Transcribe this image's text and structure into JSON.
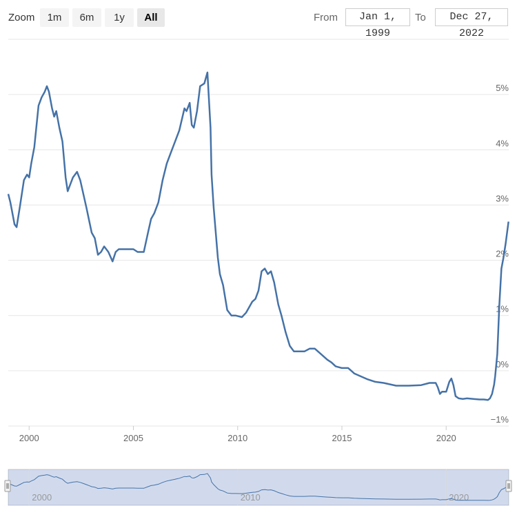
{
  "toolbar": {
    "zoom_label": "Zoom",
    "buttons": [
      "1m",
      "6m",
      "1y",
      "All"
    ],
    "active_button": "All",
    "from_label": "From",
    "to_label": "To",
    "from_value": "Jan 1, 1999",
    "to_value": "Dec 27, 2022"
  },
  "colors": {
    "series": "#4572a7",
    "navigator_mask": "#d6ddef"
  },
  "chart_data": {
    "type": "line",
    "title": "",
    "xlabel": "",
    "ylabel": "",
    "x_range": [
      1999.0,
      2023.0
    ],
    "ylim": [
      -1,
      6
    ],
    "y_ticks": [
      -1,
      0,
      1,
      2,
      3,
      4,
      5
    ],
    "y_tick_labels": [
      "−1%",
      "0%",
      "1%",
      "2%",
      "3%",
      "4%",
      "5%"
    ],
    "x_ticks": [
      2000,
      2005,
      2010,
      2015,
      2020
    ],
    "x_tick_labels": [
      "2000",
      "2005",
      "2010",
      "2015",
      "2020"
    ],
    "navigator_ticks": [
      2000,
      2010,
      2020
    ],
    "navigator_tick_labels": [
      "2000",
      "2010",
      "2020"
    ],
    "grid": true,
    "legend": "none",
    "series": [
      {
        "x": [
          1999.0,
          1999.1,
          1999.3,
          1999.4,
          1999.55,
          1999.75,
          1999.9,
          2000.0,
          2000.1,
          2000.25,
          2000.45,
          2000.6,
          2000.75,
          2000.85,
          2000.95,
          2001.1,
          2001.2,
          2001.3,
          2001.45,
          2001.6,
          2001.75,
          2001.85,
          2001.95,
          2002.1,
          2002.3,
          2002.45,
          2002.6,
          2002.75,
          2003.0,
          2003.15,
          2003.3,
          2003.45,
          2003.6,
          2003.8,
          2004.0,
          2004.15,
          2004.3,
          2004.5,
          2004.8,
          2005.0,
          2005.2,
          2005.5,
          2005.7,
          2005.85,
          2006.0,
          2006.2,
          2006.4,
          2006.6,
          2006.8,
          2007.0,
          2007.2,
          2007.45,
          2007.55,
          2007.7,
          2007.8,
          2007.9,
          2008.05,
          2008.2,
          2008.4,
          2008.55,
          2008.7,
          2008.75,
          2008.85,
          2008.95,
          2009.05,
          2009.15,
          2009.3,
          2009.5,
          2009.7,
          2009.9,
          2010.2,
          2010.4,
          2010.55,
          2010.7,
          2010.85,
          2011.0,
          2011.15,
          2011.3,
          2011.45,
          2011.6,
          2011.75,
          2011.85,
          2011.95,
          2012.1,
          2012.3,
          2012.5,
          2012.7,
          2012.95,
          2013.2,
          2013.45,
          2013.7,
          2014.0,
          2014.3,
          2014.5,
          2014.7,
          2015.0,
          2015.3,
          2015.6,
          2015.9,
          2016.2,
          2016.6,
          2017.0,
          2017.6,
          2018.2,
          2018.8,
          2019.2,
          2019.5,
          2019.6,
          2019.7,
          2019.8,
          2020.0,
          2020.15,
          2020.25,
          2020.35,
          2020.45,
          2020.6,
          2020.8,
          2021.0,
          2021.3,
          2021.6,
          2021.8,
          2022.0,
          2022.1,
          2022.2,
          2022.3,
          2022.35,
          2022.45,
          2022.55,
          2022.65,
          2022.75,
          2022.85,
          2022.92,
          2022.99
        ],
        "values": [
          3.2,
          3.05,
          2.65,
          2.6,
          2.95,
          3.45,
          3.55,
          3.5,
          3.75,
          4.05,
          4.8,
          4.95,
          5.05,
          5.15,
          5.05,
          4.75,
          4.6,
          4.7,
          4.4,
          4.15,
          3.5,
          3.25,
          3.35,
          3.5,
          3.6,
          3.45,
          3.2,
          2.95,
          2.5,
          2.4,
          2.1,
          2.15,
          2.25,
          2.15,
          1.98,
          2.15,
          2.2,
          2.2,
          2.2,
          2.2,
          2.15,
          2.15,
          2.5,
          2.75,
          2.85,
          3.05,
          3.45,
          3.75,
          3.95,
          4.15,
          4.35,
          4.75,
          4.7,
          4.85,
          4.45,
          4.4,
          4.7,
          5.15,
          5.2,
          5.4,
          4.4,
          3.55,
          2.95,
          2.5,
          2.05,
          1.75,
          1.55,
          1.1,
          1.0,
          1.0,
          0.97,
          1.05,
          1.15,
          1.25,
          1.3,
          1.45,
          1.8,
          1.85,
          1.75,
          1.8,
          1.6,
          1.4,
          1.2,
          1.0,
          0.7,
          0.45,
          0.35,
          0.35,
          0.35,
          0.4,
          0.4,
          0.3,
          0.2,
          0.15,
          0.08,
          0.05,
          0.05,
          -0.05,
          -0.1,
          -0.15,
          -0.2,
          -0.22,
          -0.27,
          -0.27,
          -0.26,
          -0.22,
          -0.22,
          -0.3,
          -0.42,
          -0.38,
          -0.38,
          -0.2,
          -0.14,
          -0.26,
          -0.46,
          -0.5,
          -0.51,
          -0.5,
          -0.51,
          -0.52,
          -0.52,
          -0.53,
          -0.5,
          -0.42,
          -0.25,
          -0.1,
          0.3,
          1.2,
          1.85,
          2.05,
          2.3,
          2.5,
          2.7
        ]
      }
    ]
  }
}
